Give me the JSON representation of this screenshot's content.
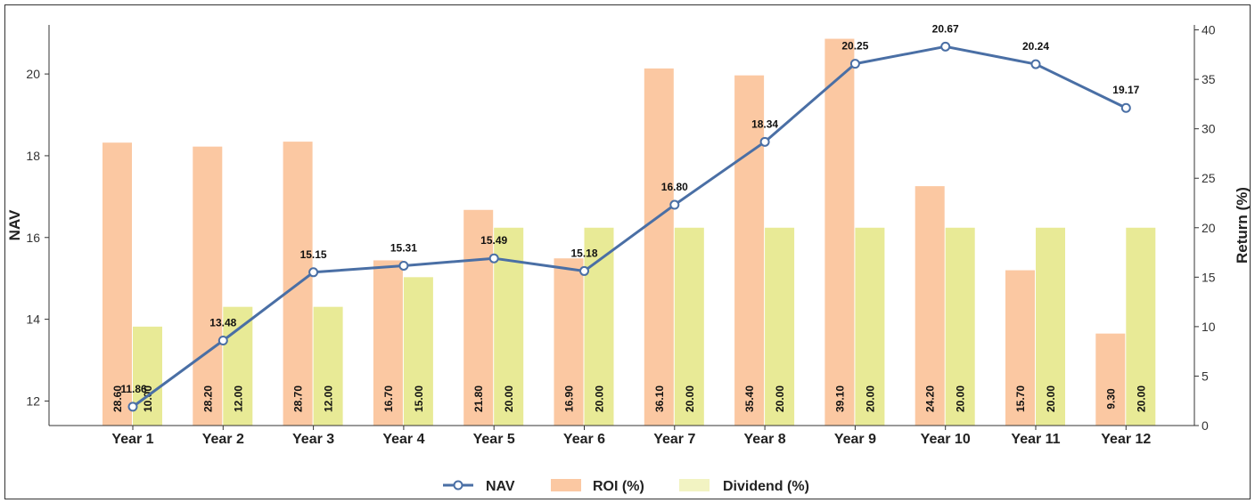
{
  "chart_data": {
    "type": "bar",
    "categories": [
      "Year 1",
      "Year 2",
      "Year 3",
      "Year 4",
      "Year 5",
      "Year 6",
      "Year 7",
      "Year 8",
      "Year 9",
      "Year 10",
      "Year 11",
      "Year 12"
    ],
    "series": [
      {
        "name": "NAV",
        "kind": "line",
        "axis": "left",
        "color": "#4a6fa5",
        "values": [
          11.86,
          13.48,
          15.15,
          15.31,
          15.49,
          15.18,
          16.8,
          18.34,
          20.25,
          20.67,
          20.24,
          19.17
        ],
        "labels": [
          "11.86",
          "13.48",
          "15.15",
          "15.31",
          "15.49",
          "15.18",
          "16.80",
          "18.34",
          "20.25",
          "20.67",
          "20.24",
          "19.17"
        ]
      },
      {
        "name": "ROI (%)",
        "kind": "bar",
        "axis": "right",
        "color": "#fbc8a2",
        "values": [
          28.6,
          28.2,
          28.7,
          16.7,
          21.8,
          16.9,
          36.1,
          35.4,
          39.1,
          24.2,
          15.7,
          9.3
        ],
        "labels": [
          "28.60",
          "28.20",
          "28.70",
          "16.70",
          "21.80",
          "16.90",
          "36.10",
          "35.40",
          "39.10",
          "24.20",
          "15.70",
          "9.30"
        ]
      },
      {
        "name": "Dividend (%)",
        "kind": "bar",
        "axis": "right",
        "color": "#e8ea96",
        "values": [
          10,
          12,
          12,
          15,
          20,
          20,
          20,
          20,
          20,
          20,
          20,
          20
        ],
        "labels": [
          "10.00",
          "12.00",
          "12.00",
          "15.00",
          "20.00",
          "20.00",
          "20.00",
          "20.00",
          "20.00",
          "20.00",
          "20.00",
          "20.00"
        ]
      }
    ],
    "ylabel_left": "NAV",
    "ylabel_right": "Return (%)",
    "ylim_left": [
      11.4,
      21.2
    ],
    "ylim_right": [
      0,
      40.5
    ],
    "yticks_left": [
      12,
      14,
      16,
      18,
      20
    ],
    "yticks_right": [
      0,
      5,
      10,
      15,
      20,
      25,
      30,
      35,
      40
    ],
    "legend": {
      "placement": "bottom-center",
      "entries": [
        "NAV",
        "ROI (%)",
        "Dividend (%)"
      ]
    },
    "grid": false
  }
}
